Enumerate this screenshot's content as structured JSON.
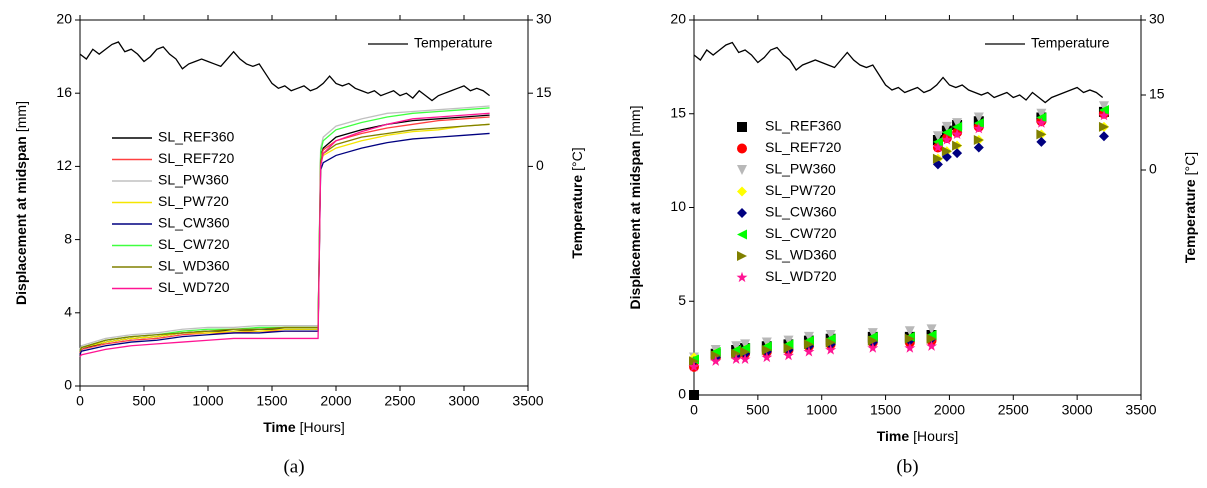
{
  "chart_data": [
    {
      "type": "line",
      "caption": "(a)",
      "xlabel": "Time",
      "xlabel_unit": "[Hours]",
      "ylabel": "Displacement at midspan",
      "ylabel_unit": "[mm]",
      "y2label": "Temperature",
      "y2label_unit": "[°C]",
      "xlim": [
        0,
        3500
      ],
      "xticks": [
        0,
        500,
        1000,
        1500,
        2000,
        2500,
        3000,
        3500
      ],
      "ylim": [
        0,
        20
      ],
      "yticks": [
        0,
        4,
        8,
        12,
        16,
        20
      ],
      "y2lim": [
        -45,
        30
      ],
      "y2ticks": [
        0,
        15,
        30
      ],
      "x": [
        0,
        10,
        200,
        400,
        600,
        800,
        1000,
        1200,
        1400,
        1600,
        1860,
        1880,
        1900,
        2000,
        2200,
        2400,
        2600,
        2800,
        3000,
        3200
      ],
      "series": [
        {
          "name": "SL_REF360",
          "color": "#000000",
          "values": [
            1.8,
            2.0,
            2.4,
            2.6,
            2.7,
            2.9,
            3.0,
            3.0,
            3.1,
            3.1,
            3.1,
            12.5,
            13.0,
            13.6,
            14.0,
            14.3,
            14.5,
            14.6,
            14.7,
            14.8
          ]
        },
        {
          "name": "SL_REF720",
          "color": "#ff4040",
          "values": [
            1.8,
            2.0,
            2.3,
            2.5,
            2.6,
            2.8,
            2.9,
            2.9,
            3.0,
            3.0,
            3.0,
            12.4,
            12.9,
            13.4,
            13.8,
            14.1,
            14.3,
            14.5,
            14.6,
            14.7
          ]
        },
        {
          "name": "SL_PW360",
          "color": "#c0c0c0",
          "values": [
            2.0,
            2.2,
            2.6,
            2.8,
            2.9,
            3.1,
            3.2,
            3.2,
            3.3,
            3.3,
            3.3,
            13.0,
            13.6,
            14.2,
            14.6,
            14.9,
            15.0,
            15.1,
            15.2,
            15.3
          ]
        },
        {
          "name": "SL_PW720",
          "color": "#f5e600",
          "values": [
            1.9,
            2.1,
            2.4,
            2.6,
            2.7,
            2.9,
            2.9,
            3.0,
            3.0,
            3.1,
            3.1,
            12.2,
            12.6,
            13.0,
            13.4,
            13.7,
            13.9,
            14.0,
            14.2,
            14.3
          ]
        },
        {
          "name": "SL_CW360",
          "color": "#000080",
          "values": [
            1.7,
            1.9,
            2.2,
            2.4,
            2.5,
            2.7,
            2.8,
            2.9,
            2.9,
            3.0,
            3.0,
            11.8,
            12.2,
            12.6,
            13.0,
            13.3,
            13.5,
            13.6,
            13.7,
            13.8
          ]
        },
        {
          "name": "SL_CW720",
          "color": "#40ff40",
          "values": [
            1.9,
            2.1,
            2.5,
            2.7,
            2.8,
            3.0,
            3.1,
            3.1,
            3.2,
            3.2,
            3.2,
            12.8,
            13.4,
            14.0,
            14.4,
            14.7,
            14.9,
            15.0,
            15.1,
            15.2
          ]
        },
        {
          "name": "SL_WD360",
          "color": "#808000",
          "values": [
            1.9,
            2.1,
            2.5,
            2.7,
            2.8,
            2.9,
            3.0,
            3.1,
            3.1,
            3.2,
            3.2,
            12.3,
            12.7,
            13.2,
            13.6,
            13.8,
            14.0,
            14.1,
            14.2,
            14.3
          ]
        },
        {
          "name": "SL_WD720",
          "color": "#ff1493",
          "values": [
            1.6,
            1.7,
            2.0,
            2.2,
            2.3,
            2.4,
            2.5,
            2.6,
            2.6,
            2.6,
            2.6,
            12.0,
            12.7,
            13.4,
            13.9,
            14.3,
            14.6,
            14.7,
            14.8,
            14.9
          ]
        },
        {
          "name": "Temperature",
          "color": "#000000",
          "axis": "y2",
          "type": "line",
          "x": [
            0,
            50,
            100,
            150,
            200,
            250,
            300,
            350,
            400,
            450,
            500,
            550,
            600,
            650,
            700,
            750,
            800,
            850,
            900,
            950,
            1000,
            1050,
            1100,
            1150,
            1200,
            1250,
            1300,
            1350,
            1400,
            1450,
            1500,
            1550,
            1600,
            1650,
            1700,
            1750,
            1800,
            1850,
            1900,
            1950,
            2000,
            2050,
            2100,
            2150,
            2200,
            2250,
            2300,
            2350,
            2400,
            2450,
            2500,
            2550,
            2600,
            2650,
            2700,
            2750,
            2800,
            2850,
            2900,
            2950,
            3000,
            3050,
            3100,
            3150,
            3200
          ],
          "values": [
            23,
            22,
            24,
            23,
            24,
            25,
            25.5,
            23.5,
            24,
            23,
            21.5,
            22.5,
            24,
            24.5,
            23,
            22,
            20,
            21,
            21.5,
            22,
            21.5,
            21,
            20.5,
            22,
            23.5,
            22,
            21,
            20.5,
            21,
            19,
            17,
            16,
            16.5,
            15.5,
            16,
            16.5,
            15.5,
            16,
            17,
            18.5,
            17,
            16.5,
            17,
            16,
            15.5,
            15,
            15.5,
            14.5,
            15,
            15.5,
            14.5,
            15,
            14,
            15.5,
            14.5,
            13.5,
            14.5,
            15,
            15.5,
            16,
            16.5,
            15.5,
            16,
            15.5,
            14.5
          ]
        }
      ]
    },
    {
      "type": "scatter",
      "caption": "(b)",
      "xlabel": "Time",
      "xlabel_unit": "[Hours]",
      "ylabel": "Displacement at midspan",
      "ylabel_unit": "[mm]",
      "y2label": "Temperature",
      "y2label_unit": "[°C]",
      "xlim": [
        0,
        3500
      ],
      "xticks": [
        0,
        500,
        1000,
        1500,
        2000,
        2500,
        3000,
        3500
      ],
      "ylim": [
        0,
        20
      ],
      "yticks": [
        0,
        5,
        10,
        15,
        20
      ],
      "y2lim": [
        -45,
        30
      ],
      "y2ticks": [
        0,
        15,
        30
      ],
      "x": [
        0,
        170,
        330,
        400,
        570,
        740,
        900,
        1070,
        1400,
        1690,
        1860,
        1910,
        1980,
        2060,
        2230,
        2720,
        3210
      ],
      "series": [
        {
          "name": "SL_REF360",
          "color": "#000000",
          "marker": "square",
          "values": [
            0,
            2.2,
            2.4,
            2.5,
            2.6,
            2.7,
            2.9,
            3.0,
            3.1,
            3.1,
            3.2,
            13.6,
            14.1,
            14.4,
            14.6,
            14.8,
            15.1
          ]
        },
        {
          "name": "SL_REF720",
          "color": "#ff0000",
          "marker": "circle",
          "values": [
            1.5,
            2.0,
            2.1,
            2.2,
            2.3,
            2.4,
            2.6,
            2.7,
            2.8,
            2.8,
            2.9,
            13.2,
            13.7,
            14.0,
            14.3,
            14.6,
            15.0
          ]
        },
        {
          "name": "SL_PW360",
          "color": "#b8b8b8",
          "marker": "triangle-down",
          "values": [
            2.0,
            2.4,
            2.6,
            2.7,
            2.8,
            2.9,
            3.1,
            3.2,
            3.3,
            3.4,
            3.5,
            13.8,
            14.3,
            14.5,
            14.8,
            15.0,
            15.4
          ]
        },
        {
          "name": "SL_PW720",
          "color": "#ffff00",
          "marker": "diamond",
          "values": [
            2.0,
            2.2,
            2.3,
            2.4,
            2.5,
            2.6,
            2.7,
            2.8,
            2.9,
            3.0,
            3.0,
            12.6,
            13.0,
            13.3,
            13.6,
            13.9,
            14.3
          ]
        },
        {
          "name": "SL_CW360",
          "color": "#000080",
          "marker": "diamond",
          "values": [
            1.8,
            2.0,
            2.1,
            2.2,
            2.3,
            2.4,
            2.6,
            2.7,
            2.8,
            2.9,
            3.0,
            12.3,
            12.7,
            12.9,
            13.2,
            13.5,
            13.8
          ]
        },
        {
          "name": "SL_CW720",
          "color": "#00ff00",
          "marker": "triangle-left",
          "values": [
            1.9,
            2.3,
            2.4,
            2.5,
            2.6,
            2.7,
            2.9,
            3.0,
            3.1,
            3.1,
            3.2,
            13.5,
            14.0,
            14.3,
            14.5,
            14.8,
            15.2
          ]
        },
        {
          "name": "SL_WD360",
          "color": "#808000",
          "marker": "triangle-right",
          "values": [
            1.8,
            2.1,
            2.2,
            2.3,
            2.4,
            2.5,
            2.7,
            2.8,
            2.9,
            3.0,
            3.0,
            12.6,
            13.0,
            13.3,
            13.6,
            13.9,
            14.3
          ]
        },
        {
          "name": "SL_WD720",
          "color": "#ff1493",
          "marker": "star",
          "values": [
            1.5,
            1.8,
            1.9,
            1.9,
            2.0,
            2.1,
            2.3,
            2.4,
            2.5,
            2.5,
            2.6,
            13.2,
            13.6,
            13.9,
            14.2,
            14.5,
            14.9
          ]
        },
        {
          "name": "Temperature",
          "color": "#000000",
          "axis": "y2",
          "type": "line",
          "x": [
            0,
            50,
            100,
            150,
            200,
            250,
            300,
            350,
            400,
            450,
            500,
            550,
            600,
            650,
            700,
            750,
            800,
            850,
            900,
            950,
            1000,
            1050,
            1100,
            1150,
            1200,
            1250,
            1300,
            1350,
            1400,
            1450,
            1500,
            1550,
            1600,
            1650,
            1700,
            1750,
            1800,
            1850,
            1900,
            1950,
            2000,
            2050,
            2100,
            2150,
            2200,
            2250,
            2300,
            2350,
            2400,
            2450,
            2500,
            2550,
            2600,
            2650,
            2700,
            2750,
            2800,
            2850,
            2900,
            2950,
            3000,
            3050,
            3100,
            3150,
            3200
          ],
          "values": [
            23,
            22,
            24,
            23,
            24,
            25,
            25.5,
            23.5,
            24,
            23,
            21.5,
            22.5,
            24,
            24.5,
            23,
            22,
            20,
            21,
            21.5,
            22,
            21.5,
            21,
            20.5,
            22,
            23.5,
            22,
            21,
            20.5,
            21,
            19,
            17,
            16,
            16.5,
            15.5,
            16,
            16.5,
            15.5,
            16,
            17,
            18.5,
            17,
            16.5,
            17,
            16,
            15.5,
            15,
            15.5,
            14.5,
            15,
            15.5,
            14.5,
            15,
            14,
            15.5,
            14.5,
            13.5,
            14.5,
            15,
            15.5,
            16,
            16.5,
            15.5,
            16,
            15.5,
            14.5
          ]
        }
      ]
    }
  ]
}
